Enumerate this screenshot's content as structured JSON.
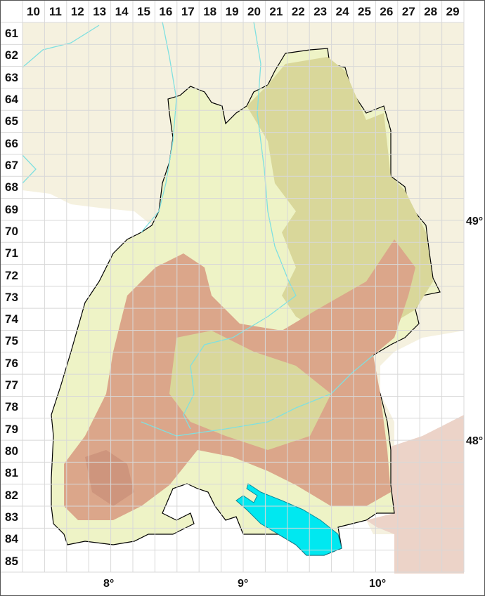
{
  "grid": {
    "columns": [
      "10",
      "11",
      "12",
      "13",
      "14",
      "15",
      "16",
      "17",
      "18",
      "19",
      "20",
      "21",
      "22",
      "23",
      "24",
      "25",
      "26",
      "27",
      "28",
      "29"
    ],
    "rows": [
      "61",
      "62",
      "63",
      "64",
      "65",
      "66",
      "67",
      "68",
      "69",
      "70",
      "71",
      "72",
      "73",
      "74",
      "75",
      "76",
      "77",
      "78",
      "79",
      "80",
      "81",
      "82",
      "83",
      "84",
      "85"
    ]
  },
  "latitude_labels": [
    "49°",
    "48°"
  ],
  "longitude_labels": [
    "8°",
    "9°",
    "10°"
  ],
  "colors": {
    "lowland": "#eef3c6",
    "hills": "#d9d79a",
    "upland": "#dba68a",
    "highland": "#c98e78",
    "outside": "#f5f2e0",
    "lake": "#00e8f0",
    "river": "#7fe0e0",
    "grid": "#d8d8d8",
    "border": "#000000"
  }
}
